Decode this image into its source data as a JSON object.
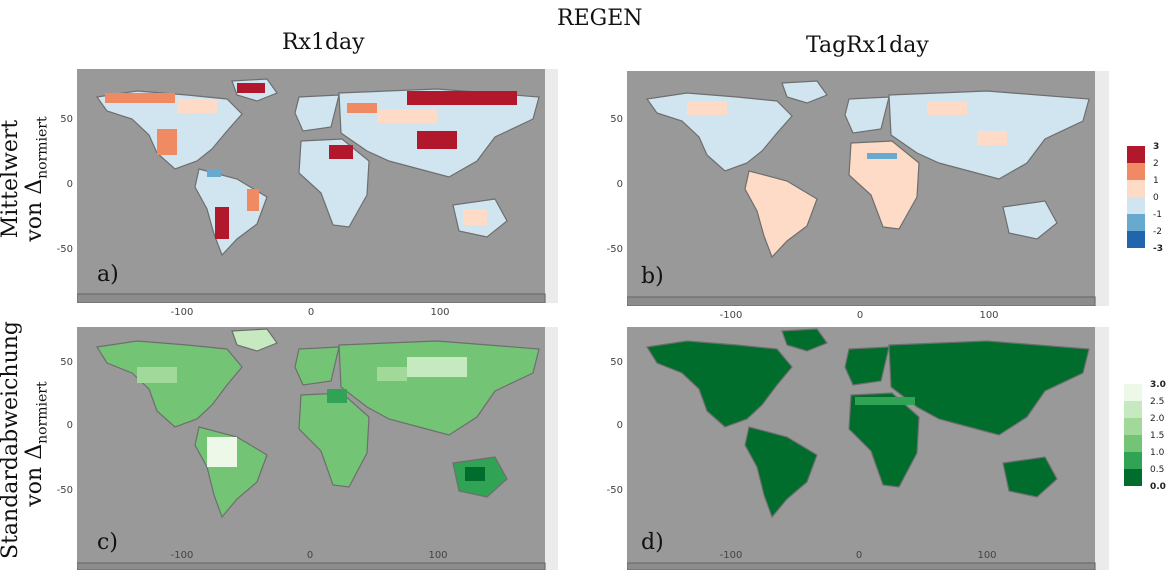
{
  "figure": {
    "title": "REGEN",
    "columns": [
      "Rx1day",
      "TagRx1day"
    ],
    "rows": [
      {
        "line1": "Mittelwert",
        "line2_prefix": "von Δ",
        "line2_sub": "normiert"
      },
      {
        "line1": "Standardabweichung",
        "line2_prefix": "von Δ",
        "line2_sub": "normiert"
      }
    ]
  },
  "panels": [
    {
      "id": "a",
      "label": "a)",
      "index": "Rx1day",
      "statistic": "Mittelwert",
      "palette": "diverging"
    },
    {
      "id": "b",
      "label": "b)",
      "index": "TagRx1day",
      "statistic": "Mittelwert",
      "palette": "diverging"
    },
    {
      "id": "c",
      "label": "c)",
      "index": "Rx1day",
      "statistic": "Standardabweichung",
      "palette": "green"
    },
    {
      "id": "d",
      "label": "d)",
      "index": "TagRx1day",
      "statistic": "Standardabweichung",
      "palette": "green"
    }
  ],
  "axes": {
    "x_ticks": [
      "-100",
      "0",
      "100"
    ],
    "y_ticks": [
      "50",
      "0",
      "-50"
    ]
  },
  "legends": {
    "mean": {
      "labels": [
        "3",
        "2",
        "1",
        "0",
        "-1",
        "-2",
        "-3"
      ],
      "colors": [
        "#b2182b",
        "#ef8a62",
        "#fddbc7",
        "#d1e5f0",
        "#67a9cf",
        "#2166ac"
      ]
    },
    "sd": {
      "labels": [
        "3.0",
        "2.5",
        "2.0",
        "1.5",
        "1.0",
        "0.5",
        "0.0"
      ],
      "colors": [
        "#edf8e9",
        "#c7e9c0",
        "#a1d99b",
        "#74c476",
        "#31a354",
        "#006d2c"
      ]
    }
  },
  "colors": {
    "ocean": "#999999",
    "panel_bg": "#ebebeb",
    "borders": "#6e6e6e"
  }
}
